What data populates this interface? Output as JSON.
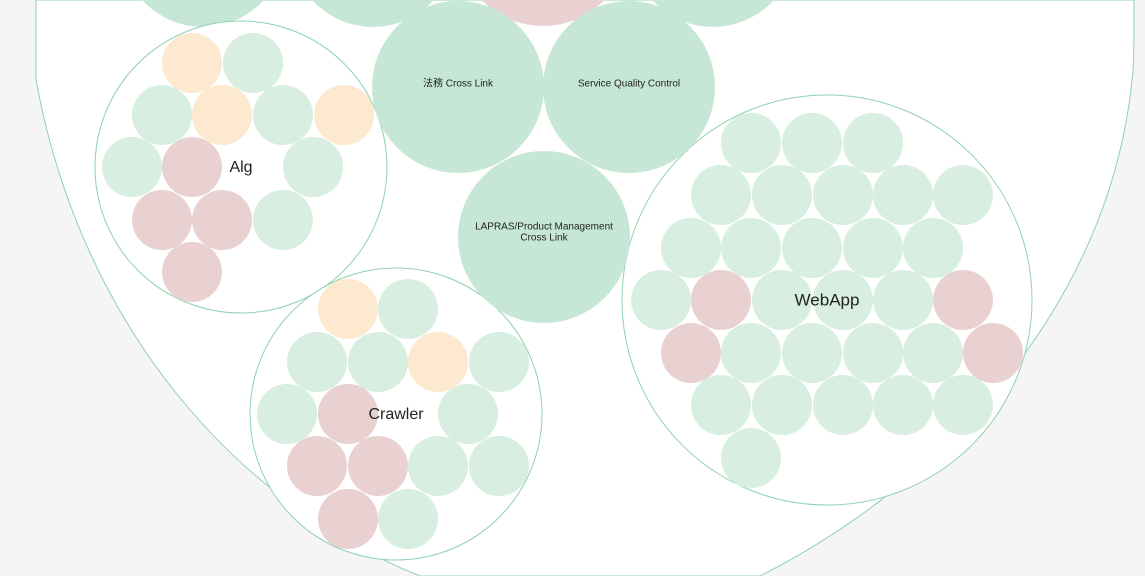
{
  "colors": {
    "background": "#f5f5f5",
    "outer_fill": "#ffffff",
    "outline": "#8fd0b4",
    "green": "#d7eee1",
    "green_large": "#c6e7d6",
    "orange": "#fde9cf",
    "red": "#ead1d1"
  },
  "groups": [
    {
      "label": "Alg",
      "members": [
        "orange",
        "green",
        "green",
        "orange",
        "green",
        "orange",
        "green",
        "red",
        "green",
        "red",
        "red",
        "green",
        "red"
      ]
    },
    {
      "label": "Crawler",
      "members": [
        "orange",
        "green",
        "green",
        "green",
        "orange",
        "green",
        "green",
        "red",
        "green",
        "red",
        "red",
        "green",
        "green",
        "red",
        "green"
      ]
    },
    {
      "label": "WebApp",
      "members": [
        "green",
        "green",
        "green",
        "green",
        "green",
        "green",
        "green",
        "green",
        "green",
        "green",
        "green",
        "green",
        "green",
        "green",
        "red",
        "green",
        "green",
        "green",
        "red",
        "red",
        "green",
        "green",
        "green",
        "green",
        "red",
        "green",
        "green",
        "green",
        "green",
        "green",
        "green"
      ]
    }
  ],
  "cross_links": [
    {
      "label": "法務 Cross Link"
    },
    {
      "label": "Service Quality Control"
    },
    {
      "label_lines": [
        "LAPRAS/Product Management",
        "Cross Link"
      ]
    }
  ]
}
